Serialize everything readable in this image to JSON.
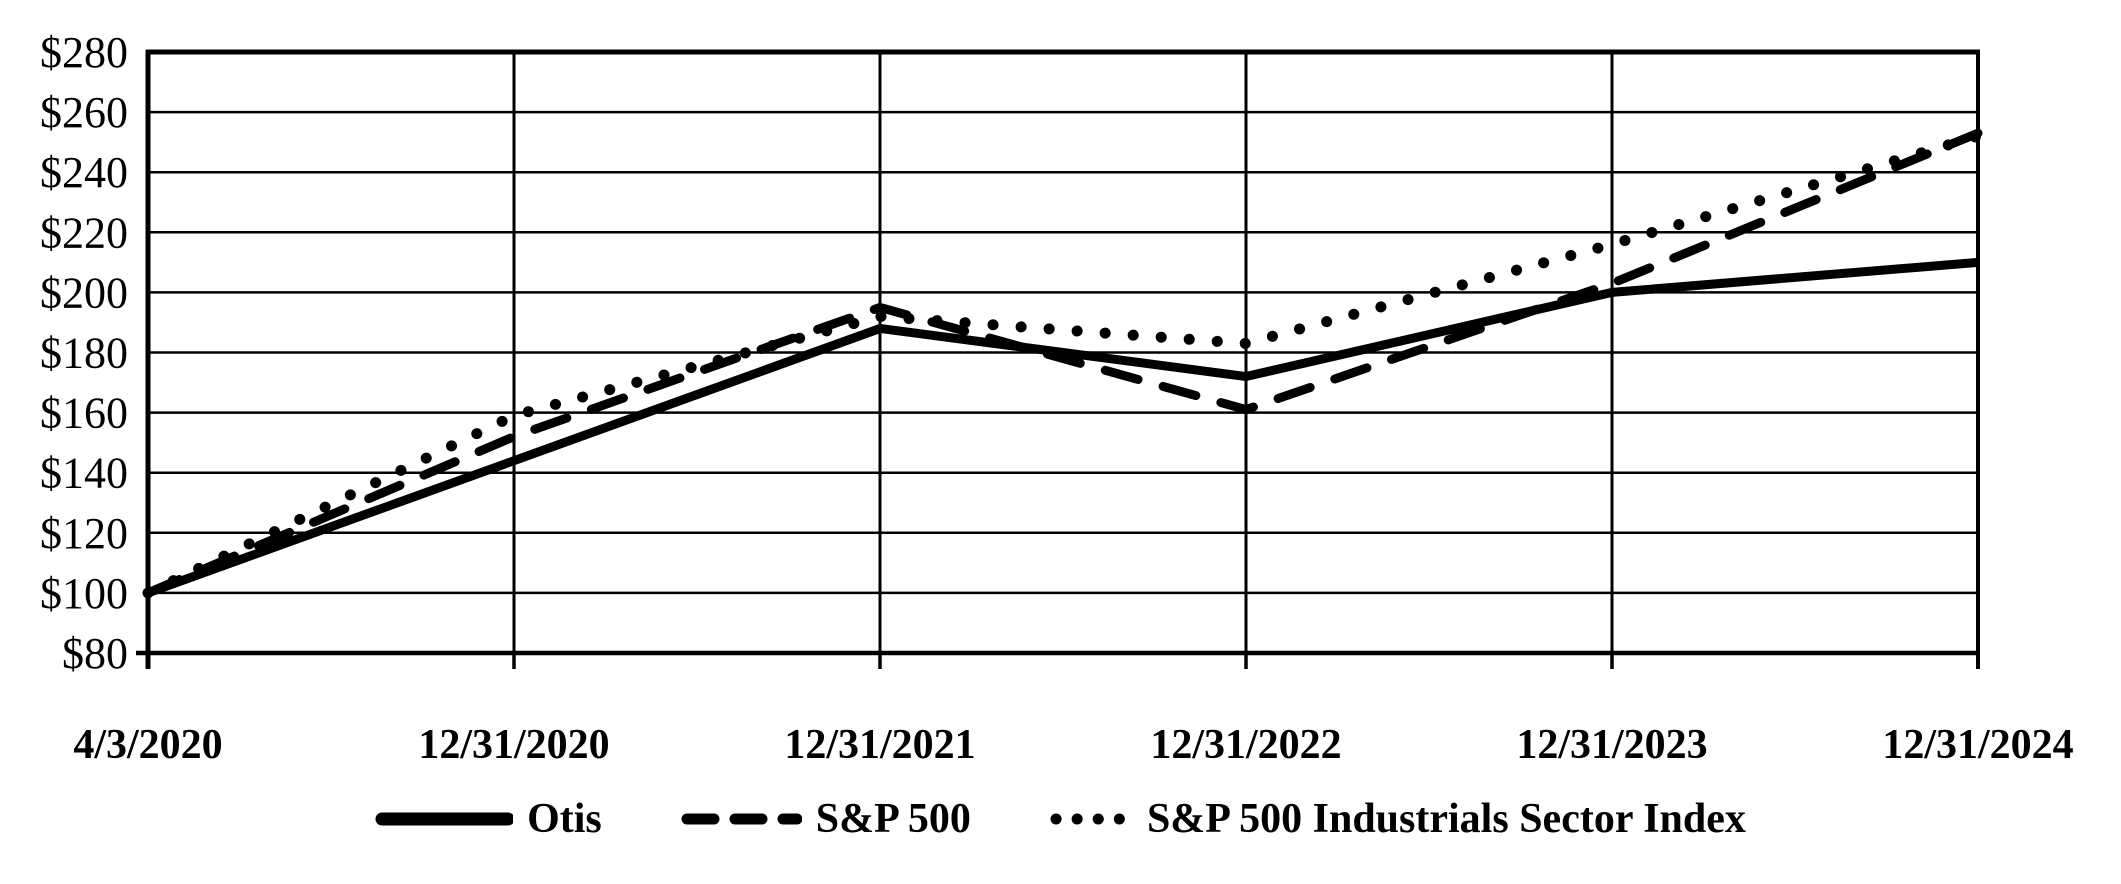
{
  "chart_data": {
    "type": "line",
    "title": "",
    "xlabel": "",
    "ylabel": "",
    "x": [
      "4/3/2020",
      "12/31/2020",
      "12/31/2021",
      "12/31/2022",
      "12/31/2023",
      "12/31/2024"
    ],
    "series": [
      {
        "name": "Otis",
        "line_style": "solid",
        "values": [
          100,
          144,
          188,
          172,
          200,
          210
        ]
      },
      {
        "name": "S&P 500",
        "line_style": "dashed",
        "values": [
          100,
          152,
          195,
          161,
          203,
          253
        ]
      },
      {
        "name": "S&P 500 Industrials Sector Index",
        "line_style": "dotted",
        "values": [
          100,
          159,
          192,
          183,
          216,
          252
        ]
      }
    ],
    "y_axis": {
      "min": 80,
      "max": 280,
      "step": 20,
      "tick_labels": [
        "$80",
        "$100",
        "$120",
        "$140",
        "$160",
        "$180",
        "$200",
        "$220",
        "$240",
        "$260",
        "$280"
      ]
    },
    "grid": "both",
    "legend_position": "bottom",
    "colors": {
      "line": "#000000",
      "grid": "#000000",
      "text": "#000000",
      "background": "#ffffff"
    }
  }
}
